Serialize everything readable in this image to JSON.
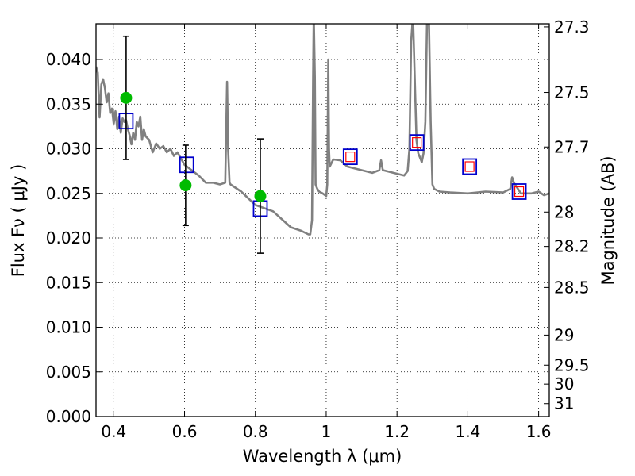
{
  "chart_data": {
    "type": "scatter",
    "xlabel": "Wavelength  λ (μm)",
    "ylabel": "Flux  Fν  ( μJy )",
    "y2label": "Magnitude (AB)",
    "xlim": [
      0.35,
      1.63
    ],
    "ylim": [
      0.0,
      0.044
    ],
    "grid": true,
    "grid_style": "dotted",
    "x_ticks": [
      0.4,
      0.6,
      0.8,
      1.0,
      1.2,
      1.4,
      1.6
    ],
    "x_tick_labels": [
      "0.4",
      "0.6",
      "0.8",
      "1",
      "1.2",
      "1.4",
      "1.6"
    ],
    "y_ticks": [
      0.0,
      0.005,
      0.01,
      0.015,
      0.02,
      0.025,
      0.03,
      0.035,
      0.04
    ],
    "y_tick_labels": [
      "0.000",
      "0.005",
      "0.010",
      "0.015",
      "0.020",
      "0.025",
      "0.030",
      "0.035",
      "0.040"
    ],
    "mag_ticks": [
      "27.3",
      "27.5",
      "27.7",
      "28",
      "28.2",
      "28.5",
      "29",
      "29.5",
      "30",
      "31"
    ],
    "colors": {
      "sed": "#808080",
      "observed": "#00bb00",
      "model_box": "#0000cc",
      "ir_inner": "#ff0000",
      "errorbar": "#000000"
    },
    "series": [
      {
        "role": "sed",
        "x": [
          0.35,
          0.355,
          0.36,
          0.365,
          0.37,
          0.375,
          0.38,
          0.385,
          0.39,
          0.395,
          0.4,
          0.405,
          0.41,
          0.415,
          0.42,
          0.425,
          0.43,
          0.435,
          0.44,
          0.445,
          0.45,
          0.455,
          0.46,
          0.465,
          0.47,
          0.475,
          0.48,
          0.485,
          0.49,
          0.5,
          0.51,
          0.52,
          0.53,
          0.54,
          0.55,
          0.56,
          0.57,
          0.58,
          0.6,
          0.62,
          0.64,
          0.66,
          0.68,
          0.7,
          0.715,
          0.72,
          0.723,
          0.727,
          0.73,
          0.76,
          0.8,
          0.85,
          0.9,
          0.93,
          0.95,
          0.955,
          0.96,
          0.963,
          0.965,
          0.968,
          0.97,
          0.975,
          0.98,
          0.99,
          1.0,
          1.003,
          1.006,
          1.008,
          1.01,
          1.02,
          1.04,
          1.06,
          1.08,
          1.1,
          1.13,
          1.15,
          1.155,
          1.16,
          1.2,
          1.22,
          1.23,
          1.235,
          1.24,
          1.245,
          1.25,
          1.255,
          1.26,
          1.265,
          1.27,
          1.275,
          1.28,
          1.285,
          1.29,
          1.295,
          1.3,
          1.305,
          1.32,
          1.35,
          1.4,
          1.45,
          1.5,
          1.52,
          1.525,
          1.53,
          1.55,
          1.58,
          1.6,
          1.615,
          1.63
        ],
        "y": [
          0.0392,
          0.0385,
          0.0335,
          0.0372,
          0.0378,
          0.0368,
          0.0352,
          0.0362,
          0.034,
          0.0345,
          0.0328,
          0.0342,
          0.0322,
          0.0336,
          0.0318,
          0.0334,
          0.033,
          0.0332,
          0.0322,
          0.0315,
          0.0305,
          0.0318,
          0.031,
          0.033,
          0.0325,
          0.0336,
          0.031,
          0.0322,
          0.0314,
          0.031,
          0.0296,
          0.0306,
          0.03,
          0.0303,
          0.0296,
          0.03,
          0.0292,
          0.0296,
          0.0282,
          0.0276,
          0.027,
          0.0262,
          0.0262,
          0.026,
          0.0262,
          0.0375,
          0.03,
          0.0262,
          0.026,
          0.0252,
          0.0237,
          0.023,
          0.0212,
          0.0208,
          0.0204,
          0.0204,
          0.022,
          0.038,
          0.045,
          0.038,
          0.026,
          0.0255,
          0.0252,
          0.025,
          0.0247,
          0.026,
          0.04,
          0.03,
          0.028,
          0.0288,
          0.0287,
          0.028,
          0.0278,
          0.0276,
          0.0273,
          0.0276,
          0.0287,
          0.0276,
          0.0272,
          0.027,
          0.0275,
          0.03,
          0.042,
          0.045,
          0.038,
          0.031,
          0.0295,
          0.029,
          0.0285,
          0.0295,
          0.033,
          0.045,
          0.045,
          0.033,
          0.026,
          0.0255,
          0.0252,
          0.0251,
          0.025,
          0.0252,
          0.0251,
          0.0255,
          0.0268,
          0.0262,
          0.025,
          0.025,
          0.0252,
          0.0248,
          0.025
        ]
      },
      {
        "name": "",
        "role": "observed",
        "x": [
          0.435,
          0.603,
          0.814
        ],
        "y": [
          0.0357,
          0.0259,
          0.0247
        ],
        "yerr": [
          0.0069,
          0.0045,
          0.0064
        ]
      },
      {
        "name": "",
        "role": "model",
        "x": [
          0.435,
          0.606,
          0.814,
          1.068,
          1.256,
          1.405,
          1.545
        ],
        "y": [
          0.0331,
          0.0282,
          0.0233,
          0.0291,
          0.0307,
          0.028,
          0.0252
        ]
      },
      {
        "name": "",
        "role": "ir_inner",
        "x": [
          1.068,
          1.256,
          1.405,
          1.545
        ],
        "y": [
          0.0291,
          0.0307,
          0.028,
          0.0252
        ]
      }
    ]
  }
}
